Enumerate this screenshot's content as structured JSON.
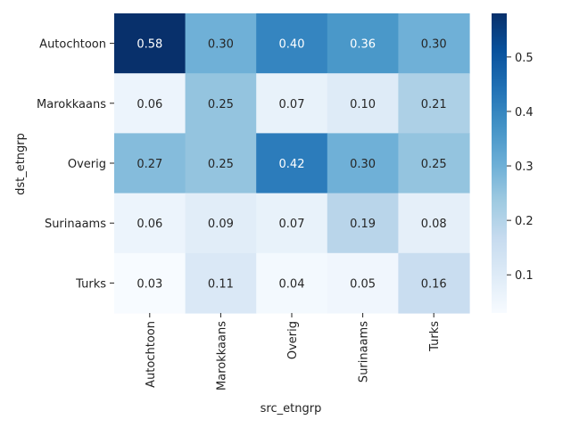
{
  "chart_data": {
    "type": "heatmap",
    "xlabel": "src_etngrp",
    "ylabel": "dst_etngrp",
    "x_categories": [
      "Autochtoon",
      "Marokkaans",
      "Overig",
      "Surinaams",
      "Turks"
    ],
    "y_categories": [
      "Autochtoon",
      "Marokkaans",
      "Overig",
      "Surinaams",
      "Turks"
    ],
    "values": [
      [
        0.58,
        0.3,
        0.4,
        0.36,
        0.3
      ],
      [
        0.06,
        0.25,
        0.07,
        0.1,
        0.21
      ],
      [
        0.27,
        0.25,
        0.42,
        0.3,
        0.25
      ],
      [
        0.06,
        0.09,
        0.07,
        0.19,
        0.08
      ],
      [
        0.03,
        0.11,
        0.04,
        0.05,
        0.16
      ]
    ],
    "value_labels": [
      [
        "0.58",
        "0.30",
        "0.40",
        "0.36",
        "0.30"
      ],
      [
        "0.06",
        "0.25",
        "0.07",
        "0.10",
        "0.21"
      ],
      [
        "0.27",
        "0.25",
        "0.42",
        "0.30",
        "0.25"
      ],
      [
        "0.06",
        "0.09",
        "0.07",
        "0.19",
        "0.08"
      ],
      [
        "0.03",
        "0.11",
        "0.04",
        "0.05",
        "0.16"
      ]
    ],
    "colormap": "Blues",
    "colormap_stops": [
      "#f7fbff",
      "#deebf7",
      "#c6dbef",
      "#9ecae1",
      "#6baed6",
      "#4292c6",
      "#2171b5",
      "#08519c",
      "#08306b"
    ],
    "vmin": 0.03,
    "vmax": 0.58,
    "colorbar_ticks": [
      0.1,
      0.2,
      0.3,
      0.4,
      0.5
    ],
    "colorbar_tick_labels": [
      "0.1",
      "0.2",
      "0.3",
      "0.4",
      "0.5"
    ],
    "grid": false,
    "legend": "colorbar-right"
  }
}
